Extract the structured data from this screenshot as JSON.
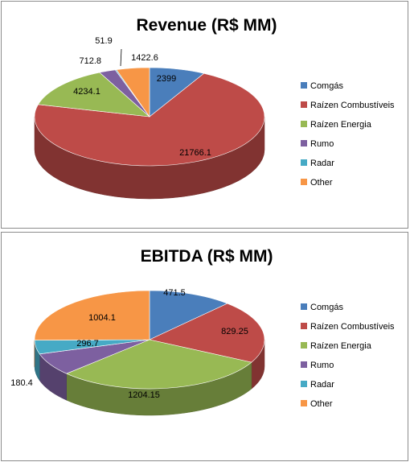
{
  "chart_data": [
    {
      "type": "pie",
      "title": "Revenue (R$ MM)",
      "categories": [
        "Comgás",
        "Raízen Combustíveis",
        "Raízen Energia",
        "Rumo",
        "Radar",
        "Other"
      ],
      "values": [
        2399,
        21766.1,
        4234.1,
        712.8,
        51.9,
        1422.6
      ],
      "data_labels": [
        "2399",
        "21766.1",
        "4234.1",
        "712.8",
        "51.9",
        "1422.6"
      ],
      "colors": [
        "#4a7ebb",
        "#be4b48",
        "#98b954",
        "#7d60a0",
        "#46aac5",
        "#f79646"
      ],
      "legend_position": "right",
      "style": "3d"
    },
    {
      "type": "pie",
      "title": "EBITDA (R$ MM)",
      "categories": [
        "Comgás",
        "Raízen Combustíveis",
        "Raízen Energia",
        "Rumo",
        "Radar",
        "Other"
      ],
      "values": [
        471.5,
        829.25,
        1204.15,
        296.7,
        180.4,
        1004.1
      ],
      "data_labels": [
        "471.5",
        "829.25",
        "1204.15",
        "296.7",
        "180.4",
        "1004.1"
      ],
      "colors": [
        "#4a7ebb",
        "#be4b48",
        "#98b954",
        "#7d60a0",
        "#46aac5",
        "#f79646"
      ],
      "legend_position": "right",
      "style": "3d"
    }
  ]
}
